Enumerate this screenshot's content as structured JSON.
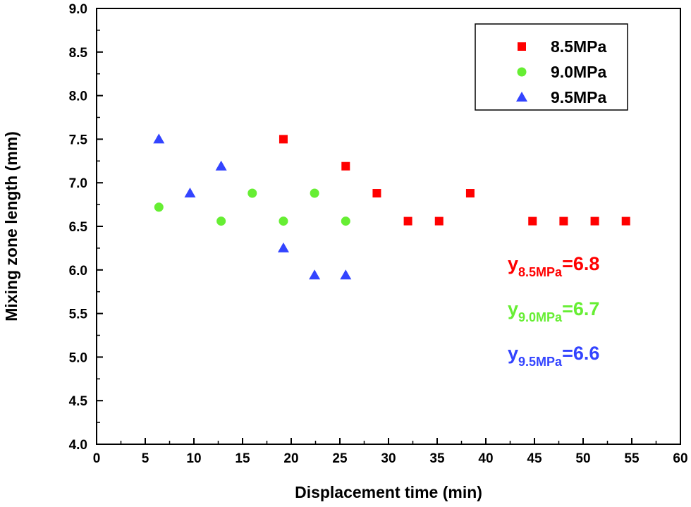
{
  "chart_data": {
    "type": "scatter",
    "xlabel": "Displacement time (min)",
    "ylabel": "Mixing zone length (mm)",
    "xlim": [
      0,
      60
    ],
    "ylim": [
      4.0,
      9.0
    ],
    "xticks": [
      "0",
      "5",
      "10",
      "15",
      "20",
      "25",
      "30",
      "35",
      "40",
      "45",
      "50",
      "55",
      "60"
    ],
    "yticks": [
      "4.0",
      "4.5",
      "5.0",
      "5.5",
      "6.0",
      "6.5",
      "7.0",
      "7.5",
      "8.0",
      "8.5",
      "9.0"
    ],
    "legend_position": "top-right",
    "series": [
      {
        "name": "8.5MPa",
        "marker": "square",
        "color": "#ff0000",
        "points": [
          [
            19.2,
            7.5
          ],
          [
            25.6,
            7.19
          ],
          [
            28.8,
            6.88
          ],
          [
            32.0,
            6.56
          ],
          [
            35.2,
            6.56
          ],
          [
            38.4,
            6.88
          ],
          [
            44.8,
            6.56
          ],
          [
            48.0,
            6.56
          ],
          [
            51.2,
            6.56
          ],
          [
            54.4,
            6.56
          ]
        ]
      },
      {
        "name": "9.0MPa",
        "marker": "circle",
        "color": "#66ee33",
        "points": [
          [
            6.4,
            6.72
          ],
          [
            12.8,
            6.56
          ],
          [
            16.0,
            6.88
          ],
          [
            19.2,
            6.56
          ],
          [
            22.4,
            6.88
          ],
          [
            25.6,
            6.56
          ]
        ]
      },
      {
        "name": "9.5MPa",
        "marker": "triangle",
        "color": "#3344ff",
        "points": [
          [
            6.4,
            7.5
          ],
          [
            9.6,
            6.88
          ],
          [
            12.8,
            7.19
          ],
          [
            19.2,
            6.25
          ],
          [
            22.4,
            5.94
          ],
          [
            25.6,
            5.94
          ]
        ]
      }
    ],
    "annotations": [
      {
        "prefix": "y",
        "subscript": "8.5MPa",
        "suffix": "=6.8",
        "color": "#ff0000"
      },
      {
        "prefix": "y",
        "subscript": "9.0MPa",
        "suffix": "=6.7",
        "color": "#66ee33"
      },
      {
        "prefix": "y",
        "subscript": "9.5MPa",
        "suffix": "=6.6",
        "color": "#3344ff"
      }
    ]
  }
}
